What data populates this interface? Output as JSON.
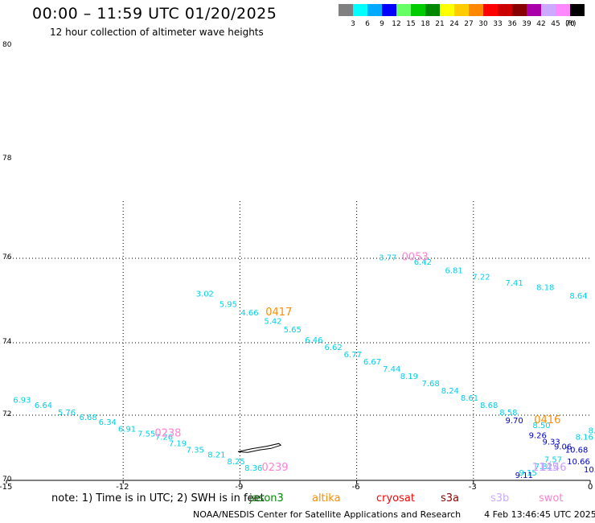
{
  "header": {
    "title": "00:00 – 11:59 UTC 01/20/2025",
    "subtitle": "12 hour collection of altimeter wave heights"
  },
  "legend": {
    "unit": "(ft)",
    "items": [
      {
        "label": "3",
        "color": "#808080"
      },
      {
        "label": "6",
        "color": "#00ffff"
      },
      {
        "label": "9",
        "color": "#00aaff"
      },
      {
        "label": "12",
        "color": "#0000ff"
      },
      {
        "label": "15",
        "color": "#66ff66"
      },
      {
        "label": "18",
        "color": "#00cc00"
      },
      {
        "label": "21",
        "color": "#008800"
      },
      {
        "label": "24",
        "color": "#ffff00"
      },
      {
        "label": "27",
        "color": "#ffcc00"
      },
      {
        "label": "30",
        "color": "#ff8800"
      },
      {
        "label": "33",
        "color": "#ff0000"
      },
      {
        "label": "36",
        "color": "#cc0000"
      },
      {
        "label": "39",
        "color": "#880000"
      },
      {
        "label": "42",
        "color": "#aa00aa"
      },
      {
        "label": "45",
        "color": "#ccaaff"
      },
      {
        "label": "70",
        "color": "#ff88ff"
      },
      {
        "label": "",
        "color": "#000000"
      }
    ]
  },
  "axes": {
    "y_ticks": [
      {
        "label": "80",
        "value": 80
      },
      {
        "label": "78",
        "value": 78
      },
      {
        "label": "76",
        "value": 76
      },
      {
        "label": "74",
        "value": 74
      },
      {
        "label": "72",
        "value": 72
      },
      {
        "label": "70",
        "value": 70
      }
    ],
    "x_ticks": [
      {
        "label": "-15",
        "value": -15
      },
      {
        "label": "-12",
        "value": -12
      },
      {
        "label": "-9",
        "value": -9
      },
      {
        "label": "-6",
        "value": -6
      },
      {
        "label": "-3",
        "value": -3
      },
      {
        "label": "0",
        "value": 0
      }
    ]
  },
  "map": {
    "lon_range": [
      -15,
      0
    ],
    "lat_range": [
      70,
      80
    ],
    "grid_lon": [
      -12,
      -9,
      -6,
      -3
    ],
    "grid_lat": [
      76,
      74,
      72
    ],
    "color_wave_track": "#00d0e8",
    "color_blue": "#0000cc",
    "color_orange": "#ff8c00",
    "color_pink": "#ff80d0",
    "color_lilac": "#c8a0ff",
    "island": "Jan Mayen",
    "island_outline": [
      [
        -9.05,
        70.88
      ],
      [
        -8.7,
        70.97
      ],
      [
        -8.3,
        71.05
      ],
      [
        -8.0,
        71.13
      ],
      [
        -7.95,
        71.08
      ],
      [
        -8.2,
        70.98
      ],
      [
        -8.5,
        70.93
      ],
      [
        -8.8,
        70.86
      ],
      [
        -9.05,
        70.88
      ]
    ]
  },
  "observations": [
    {
      "text": "6.93",
      "lon": -14.6,
      "lat": 72.35,
      "color": "#00d0e8"
    },
    {
      "text": "6.64",
      "lon": -14.05,
      "lat": 72.2,
      "color": "#00d0e8"
    },
    {
      "text": "5.76",
      "lon": -13.45,
      "lat": 72.0,
      "color": "#00d0e8"
    },
    {
      "text": "6.68",
      "lon": -12.9,
      "lat": 71.85,
      "color": "#00d0e8"
    },
    {
      "text": "6.34",
      "lon": -12.4,
      "lat": 71.7,
      "color": "#00d0e8"
    },
    {
      "text": "6.91",
      "lon": -11.9,
      "lat": 71.5,
      "color": "#00d0e8"
    },
    {
      "text": "7.55",
      "lon": -11.4,
      "lat": 71.35,
      "color": "#00d0e8"
    },
    {
      "text": "7.26",
      "lon": -10.95,
      "lat": 71.25,
      "color": "#00d0e8"
    },
    {
      "text": "7.19",
      "lon": -10.6,
      "lat": 71.05,
      "color": "#00d0e8"
    },
    {
      "text": "7.35",
      "lon": -10.15,
      "lat": 70.85,
      "color": "#00d0e8"
    },
    {
      "text": "8.21",
      "lon": -9.6,
      "lat": 70.7,
      "color": "#00d0e8"
    },
    {
      "text": "8.25",
      "lon": -9.1,
      "lat": 70.5,
      "color": "#00d0e8"
    },
    {
      "text": "8.36",
      "lon": -8.65,
      "lat": 70.3,
      "color": "#00d0e8"
    },
    {
      "text": "3.02",
      "lon": -9.9,
      "lat": 75.1,
      "color": "#00d0e8"
    },
    {
      "text": "5.95",
      "lon": -9.3,
      "lat": 74.85,
      "color": "#00d0e8"
    },
    {
      "text": "4.66",
      "lon": -8.75,
      "lat": 74.65,
      "color": "#00d0e8"
    },
    {
      "text": "5.42",
      "lon": -8.15,
      "lat": 74.45,
      "color": "#00d0e8"
    },
    {
      "text": "5.65",
      "lon": -7.65,
      "lat": 74.25,
      "color": "#00d0e8"
    },
    {
      "text": "6.46",
      "lon": -7.1,
      "lat": 74.0,
      "color": "#00d0e8"
    },
    {
      "text": "6.62",
      "lon": -6.6,
      "lat": 73.8,
      "color": "#00d0e8"
    },
    {
      "text": "6.77",
      "lon": -6.1,
      "lat": 73.6,
      "color": "#00d0e8"
    },
    {
      "text": "6.67",
      "lon": -5.6,
      "lat": 73.4,
      "color": "#00d0e8"
    },
    {
      "text": "7.44",
      "lon": -5.1,
      "lat": 73.2,
      "color": "#00d0e8"
    },
    {
      "text": "8.19",
      "lon": -4.65,
      "lat": 73.0,
      "color": "#00d0e8"
    },
    {
      "text": "7.68",
      "lon": -4.1,
      "lat": 72.8,
      "color": "#00d0e8"
    },
    {
      "text": "8.24",
      "lon": -3.6,
      "lat": 72.6,
      "color": "#00d0e8"
    },
    {
      "text": "8.61",
      "lon": -3.1,
      "lat": 72.4,
      "color": "#00d0e8"
    },
    {
      "text": "8.68",
      "lon": -2.6,
      "lat": 72.2,
      "color": "#00d0e8"
    },
    {
      "text": "8.58",
      "lon": -2.1,
      "lat": 72.0,
      "color": "#00d0e8"
    },
    {
      "text": "8.50",
      "lon": -1.25,
      "lat": 71.6,
      "color": "#00d0e8"
    },
    {
      "text": "8.16",
      "lon": -0.15,
      "lat": 71.25,
      "color": "#00d0e8"
    },
    {
      "text": "8.",
      "lon": 0.05,
      "lat": 71.45,
      "color": "#00d0e8"
    },
    {
      "text": "7.57",
      "lon": -0.95,
      "lat": 70.55,
      "color": "#00d0e8"
    },
    {
      "text": "7.82",
      "lon": -1.2,
      "lat": 70.35,
      "color": "#00d0e8"
    },
    {
      "text": "9.15",
      "lon": -1.6,
      "lat": 70.15,
      "color": "#00d0e8"
    },
    {
      "text": "3.77",
      "lon": -5.2,
      "lat": 75.95,
      "color": "#00d0e8"
    },
    {
      "text": "6.42",
      "lon": -4.3,
      "lat": 75.85,
      "color": "#00d0e8"
    },
    {
      "text": "6.81",
      "lon": -3.5,
      "lat": 75.65,
      "color": "#00d0e8"
    },
    {
      "text": "7.22",
      "lon": -2.8,
      "lat": 75.5,
      "color": "#00d0e8"
    },
    {
      "text": "7.41",
      "lon": -1.95,
      "lat": 75.35,
      "color": "#00d0e8"
    },
    {
      "text": "8.18",
      "lon": -1.15,
      "lat": 75.25,
      "color": "#00d0e8"
    },
    {
      "text": "8.64",
      "lon": -0.3,
      "lat": 75.05,
      "color": "#00d0e8"
    },
    {
      "text": "9.70",
      "lon": -1.95,
      "lat": 71.75,
      "color": "#0000cc"
    },
    {
      "text": "9.26",
      "lon": -1.35,
      "lat": 71.3,
      "color": "#0000cc"
    },
    {
      "text": "9.33",
      "lon": -1.0,
      "lat": 71.1,
      "color": "#0000cc"
    },
    {
      "text": "9.06",
      "lon": -0.7,
      "lat": 70.95,
      "color": "#0000cc"
    },
    {
      "text": "10.68",
      "lon": -0.35,
      "lat": 70.85,
      "color": "#0000cc"
    },
    {
      "text": "10.66",
      "lon": -0.3,
      "lat": 70.5,
      "color": "#0000cc"
    },
    {
      "text": "10.",
      "lon": 0.0,
      "lat": 70.25,
      "color": "#0000cc"
    },
    {
      "text": "9.11",
      "lon": -1.7,
      "lat": 70.08,
      "color": "#0000cc"
    },
    {
      "text": "0417",
      "lon": -8.0,
      "lat": 74.65,
      "color": "#ff8c00",
      "big": true
    },
    {
      "text": "0416",
      "lon": -1.1,
      "lat": 71.75,
      "color": "#ff8c00",
      "big": true
    },
    {
      "text": "0053",
      "lon": -4.5,
      "lat": 75.95,
      "color": "#ff80d0",
      "big": true
    },
    {
      "text": "0238",
      "lon": -10.85,
      "lat": 71.35,
      "color": "#ff80d0",
      "big": true
    },
    {
      "text": "0239",
      "lon": -8.1,
      "lat": 70.3,
      "color": "#ff80d0",
      "big": true
    },
    {
      "text": "1146",
      "lon": -0.95,
      "lat": 70.3,
      "color": "#c8a0ff",
      "big": true
    },
    {
      "text": "1145",
      "lon": -1.15,
      "lat": 70.3,
      "color": "#c8a0ff",
      "big": true
    }
  ],
  "note": {
    "text": "note: 1) Time is in UTC; 2) SWH is in feet",
    "satellites": [
      {
        "name": "jason3",
        "color": "#008800"
      },
      {
        "name": "altika",
        "color": "#ff8c00"
      },
      {
        "name": "cryosat",
        "color": "#ff0000"
      },
      {
        "name": "s3a",
        "color": "#880000"
      },
      {
        "name": "s3b",
        "color": "#ccaaff"
      },
      {
        "name": "swot",
        "color": "#ff80d0"
      }
    ]
  },
  "footer": {
    "source": "NOAA/NESDIS Center for Satellite Applications and Research",
    "timestamp": "4 Feb 13:46:45 UTC 2025"
  }
}
